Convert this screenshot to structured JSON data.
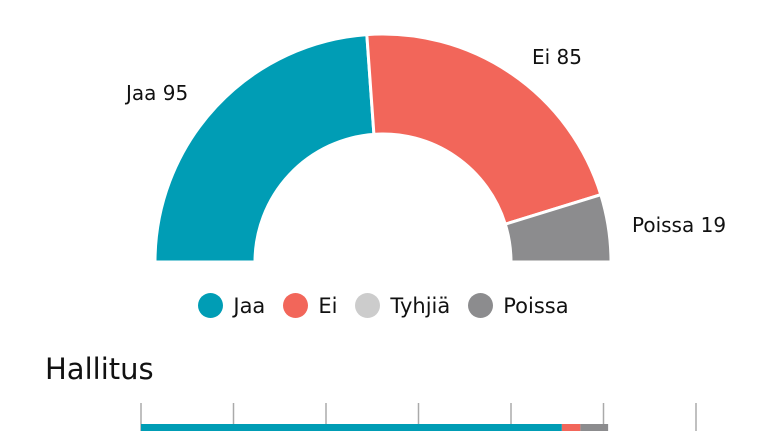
{
  "chart_data": [
    {
      "type": "pie",
      "variant": "semi-donut",
      "categories": [
        "Jaa",
        "Ei",
        "Tyhjiä",
        "Poissa"
      ],
      "values": [
        95,
        85,
        0,
        19
      ],
      "labels": [
        "Jaa 95",
        "Ei 85",
        "",
        "Poissa 19"
      ],
      "colors": [
        "#009db5",
        "#f2665a",
        "#cccccc",
        "#8c8c8e"
      ],
      "legend": "bottom"
    },
    {
      "type": "bar",
      "orientation": "horizontal",
      "stacked": true,
      "title": "Hallitus",
      "categories": [
        "Jaa",
        "Ei",
        "Poissa"
      ],
      "values": [
        91,
        4,
        6
      ],
      "colors": [
        "#009db5",
        "#f2665a",
        "#8c8c8e"
      ],
      "xlim": [
        0,
        120
      ],
      "tick_step": 20,
      "grid": true
    }
  ],
  "legend": {
    "items": [
      {
        "label": "Jaa",
        "color": "#009db5"
      },
      {
        "label": "Ei",
        "color": "#f2665a"
      },
      {
        "label": "Tyhjiä",
        "color": "#cccccc"
      },
      {
        "label": "Poissa",
        "color": "#8c8c8e"
      }
    ]
  },
  "section": {
    "title": "Hallitus"
  }
}
